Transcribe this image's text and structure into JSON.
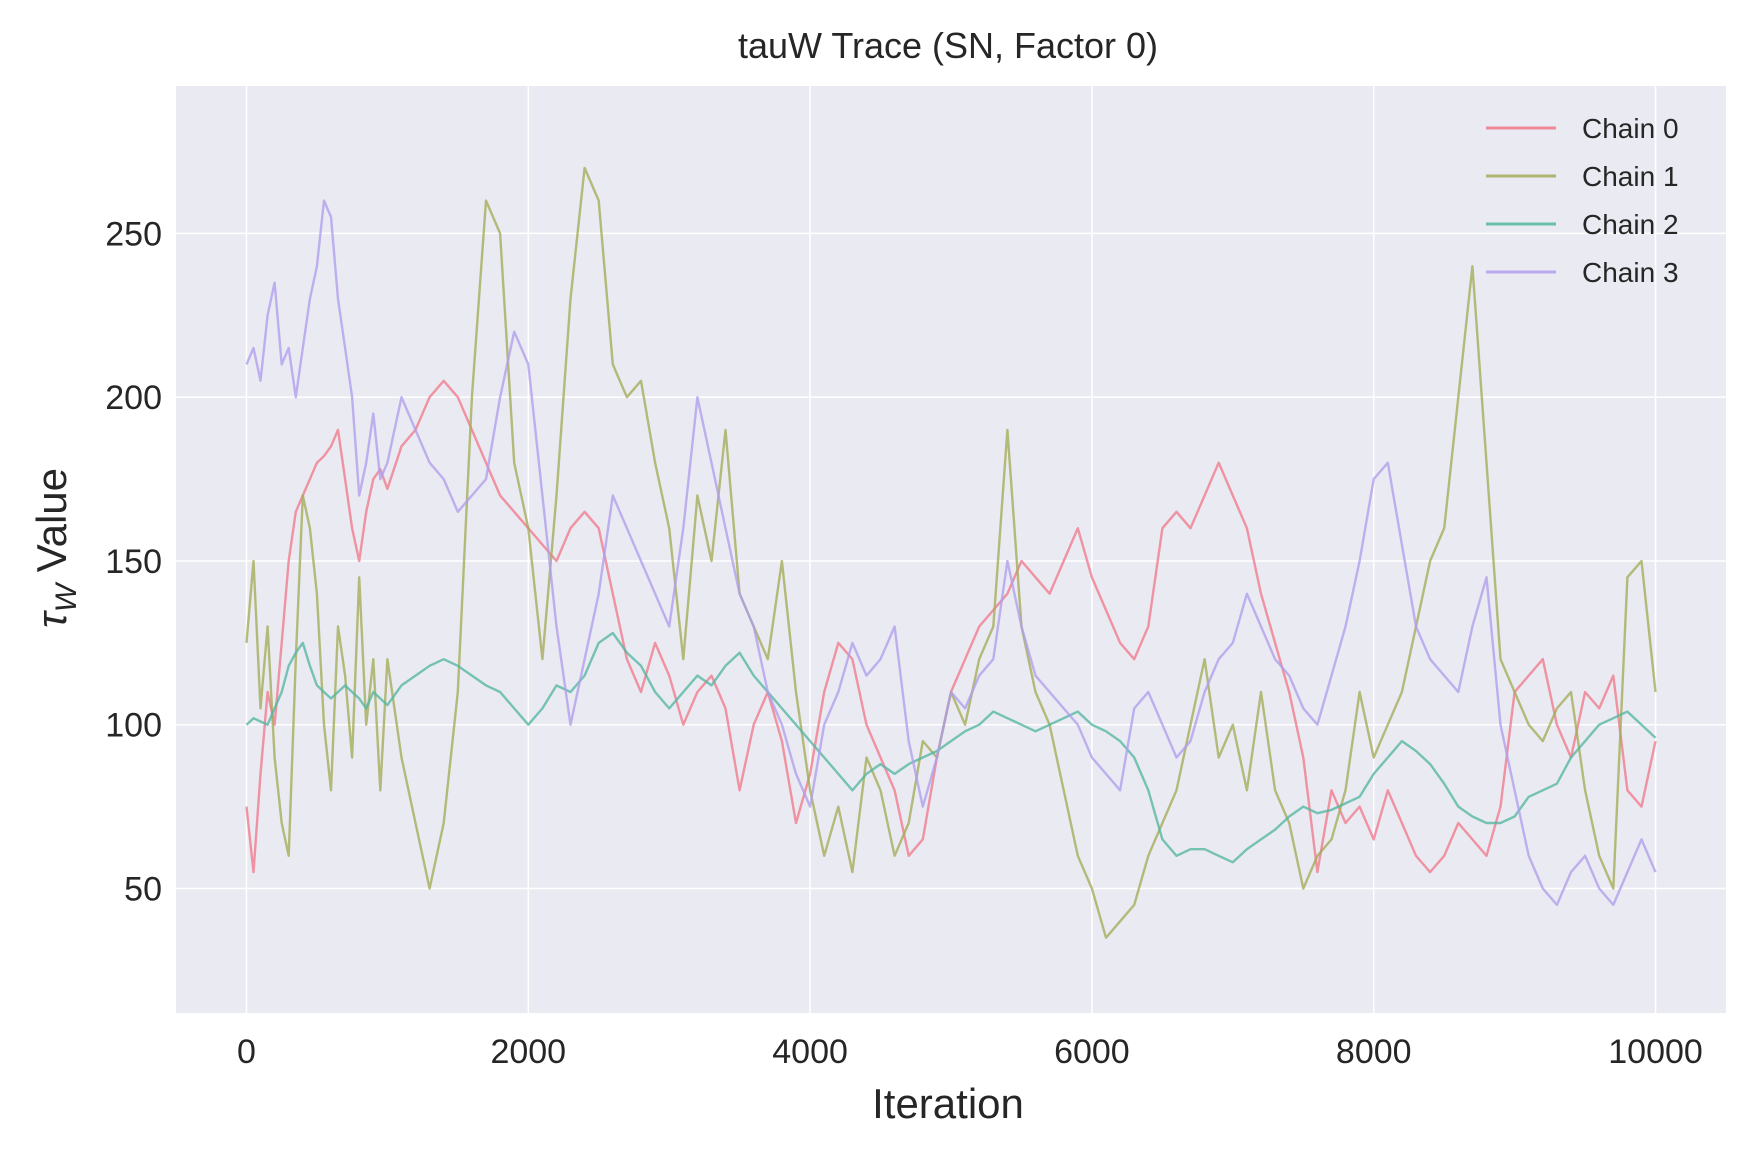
{
  "chart_data": {
    "type": "line",
    "title": "tauW Trace (SN, Factor 0)",
    "xlabel": "Iteration",
    "ylabel_symbol": "τ",
    "ylabel_sub": "W",
    "ylabel_rest": " Value",
    "xlim": [
      -500,
      10500
    ],
    "ylim": [
      12,
      295
    ],
    "xticks": [
      0,
      2000,
      4000,
      6000,
      8000,
      10000
    ],
    "xtick_labels": [
      "0",
      "2000",
      "4000",
      "6000",
      "8000",
      "10000"
    ],
    "yticks": [
      50,
      100,
      150,
      200,
      250
    ],
    "ytick_labels": [
      "50",
      "100",
      "150",
      "200",
      "250"
    ],
    "grid": true,
    "legend_position": "top-right",
    "background": "#eaeaf2",
    "grid_color": "#ffffff",
    "series": [
      {
        "name": "Chain 0",
        "color": "#f0788a",
        "x": [
          0,
          50,
          100,
          150,
          200,
          250,
          300,
          350,
          400,
          450,
          500,
          550,
          600,
          650,
          700,
          750,
          800,
          850,
          900,
          950,
          1000,
          1100,
          1200,
          1300,
          1400,
          1500,
          1600,
          1700,
          1800,
          1900,
          2000,
          2100,
          2200,
          2300,
          2400,
          2500,
          2600,
          2700,
          2800,
          2900,
          3000,
          3100,
          3200,
          3300,
          3400,
          3500,
          3600,
          3700,
          3800,
          3900,
          4000,
          4100,
          4200,
          4300,
          4400,
          4500,
          4600,
          4700,
          4800,
          4900,
          5000,
          5100,
          5200,
          5300,
          5400,
          5500,
          5600,
          5700,
          5800,
          5900,
          6000,
          6100,
          6200,
          6300,
          6400,
          6500,
          6600,
          6700,
          6800,
          6900,
          7000,
          7100,
          7200,
          7300,
          7400,
          7500,
          7600,
          7700,
          7800,
          7900,
          8000,
          8100,
          8200,
          8300,
          8400,
          8500,
          8600,
          8700,
          8800,
          8900,
          9000,
          9100,
          9200,
          9300,
          9400,
          9500,
          9600,
          9700,
          9800,
          9900,
          10000
        ],
        "values": [
          75,
          55,
          85,
          110,
          100,
          125,
          150,
          165,
          170,
          175,
          180,
          182,
          185,
          190,
          175,
          160,
          150,
          165,
          175,
          178,
          172,
          185,
          190,
          200,
          205,
          200,
          190,
          180,
          170,
          165,
          160,
          155,
          150,
          160,
          165,
          160,
          140,
          120,
          110,
          125,
          115,
          100,
          110,
          115,
          105,
          80,
          100,
          110,
          95,
          70,
          85,
          110,
          125,
          120,
          100,
          90,
          80,
          60,
          65,
          90,
          110,
          120,
          130,
          135,
          140,
          150,
          145,
          140,
          150,
          160,
          145,
          135,
          125,
          120,
          130,
          160,
          165,
          160,
          170,
          180,
          170,
          160,
          140,
          125,
          110,
          90,
          55,
          80,
          70,
          75,
          65,
          80,
          70,
          60,
          55,
          60,
          70,
          65,
          60,
          75,
          110,
          115,
          120,
          100,
          90,
          110,
          105,
          115,
          80,
          75,
          95
        ]
      },
      {
        "name": "Chain 1",
        "color": "#a3ac57",
        "x": [
          0,
          50,
          100,
          150,
          200,
          250,
          300,
          350,
          400,
          450,
          500,
          550,
          600,
          650,
          700,
          750,
          800,
          850,
          900,
          950,
          1000,
          1100,
          1200,
          1300,
          1400,
          1500,
          1600,
          1700,
          1800,
          1900,
          2000,
          2100,
          2200,
          2300,
          2400,
          2500,
          2600,
          2700,
          2800,
          2900,
          3000,
          3100,
          3200,
          3300,
          3400,
          3500,
          3600,
          3700,
          3800,
          3900,
          4000,
          4100,
          4200,
          4300,
          4400,
          4500,
          4600,
          4700,
          4800,
          4900,
          5000,
          5100,
          5200,
          5300,
          5400,
          5500,
          5600,
          5700,
          5800,
          5900,
          6000,
          6100,
          6200,
          6300,
          6400,
          6500,
          6600,
          6700,
          6800,
          6900,
          7000,
          7100,
          7200,
          7300,
          7400,
          7500,
          7600,
          7700,
          7800,
          7900,
          8000,
          8100,
          8200,
          8300,
          8400,
          8500,
          8600,
          8700,
          8800,
          8900,
          9000,
          9100,
          9200,
          9300,
          9400,
          9500,
          9600,
          9700,
          9800,
          9900,
          10000
        ],
        "values": [
          125,
          150,
          105,
          130,
          90,
          70,
          60,
          120,
          170,
          160,
          140,
          100,
          80,
          130,
          115,
          90,
          145,
          100,
          120,
          80,
          120,
          90,
          70,
          50,
          70,
          110,
          200,
          260,
          250,
          180,
          160,
          120,
          170,
          230,
          270,
          260,
          210,
          200,
          205,
          180,
          160,
          120,
          170,
          150,
          190,
          140,
          130,
          120,
          150,
          110,
          80,
          60,
          75,
          55,
          90,
          80,
          60,
          70,
          95,
          90,
          110,
          100,
          120,
          130,
          190,
          130,
          110,
          100,
          80,
          60,
          50,
          35,
          40,
          45,
          60,
          70,
          80,
          100,
          120,
          90,
          100,
          80,
          110,
          80,
          70,
          50,
          60,
          65,
          80,
          110,
          90,
          100,
          110,
          130,
          150,
          160,
          200,
          240,
          180,
          120,
          110,
          100,
          95,
          105,
          110,
          80,
          60,
          50,
          145,
          150,
          110
        ]
      },
      {
        "name": "Chain 2",
        "color": "#53b6a2",
        "x": [
          0,
          50,
          100,
          150,
          200,
          250,
          300,
          350,
          400,
          450,
          500,
          550,
          600,
          650,
          700,
          750,
          800,
          850,
          900,
          950,
          1000,
          1100,
          1200,
          1300,
          1400,
          1500,
          1600,
          1700,
          1800,
          1900,
          2000,
          2100,
          2200,
          2300,
          2400,
          2500,
          2600,
          2700,
          2800,
          2900,
          3000,
          3100,
          3200,
          3300,
          3400,
          3500,
          3600,
          3700,
          3800,
          3900,
          4000,
          4100,
          4200,
          4300,
          4400,
          4500,
          4600,
          4700,
          4800,
          4900,
          5000,
          5100,
          5200,
          5300,
          5400,
          5500,
          5600,
          5700,
          5800,
          5900,
          6000,
          6100,
          6200,
          6300,
          6400,
          6500,
          6600,
          6700,
          6800,
          6900,
          7000,
          7100,
          7200,
          7300,
          7400,
          7500,
          7600,
          7700,
          7800,
          7900,
          8000,
          8100,
          8200,
          8300,
          8400,
          8500,
          8600,
          8700,
          8800,
          8900,
          9000,
          9100,
          9200,
          9300,
          9400,
          9500,
          9600,
          9700,
          9800,
          9900,
          10000
        ],
        "values": [
          100,
          102,
          101,
          100,
          105,
          110,
          118,
          122,
          125,
          118,
          112,
          110,
          108,
          110,
          112,
          110,
          108,
          105,
          110,
          108,
          106,
          112,
          115,
          118,
          120,
          118,
          115,
          112,
          110,
          105,
          100,
          105,
          112,
          110,
          115,
          125,
          128,
          122,
          118,
          110,
          105,
          110,
          115,
          112,
          118,
          122,
          115,
          110,
          105,
          100,
          95,
          90,
          85,
          80,
          85,
          88,
          85,
          88,
          90,
          92,
          95,
          98,
          100,
          104,
          102,
          100,
          98,
          100,
          102,
          104,
          100,
          98,
          95,
          90,
          80,
          65,
          60,
          62,
          62,
          60,
          58,
          62,
          65,
          68,
          72,
          75,
          73,
          74,
          76,
          78,
          85,
          90,
          95,
          92,
          88,
          82,
          75,
          72,
          70,
          70,
          72,
          78,
          80,
          82,
          90,
          95,
          100,
          102,
          104,
          100,
          96
        ]
      },
      {
        "name": "Chain 3",
        "color": "#b09ded",
        "x": [
          0,
          50,
          100,
          150,
          200,
          250,
          300,
          350,
          400,
          450,
          500,
          550,
          600,
          650,
          700,
          750,
          800,
          850,
          900,
          950,
          1000,
          1100,
          1200,
          1300,
          1400,
          1500,
          1600,
          1700,
          1800,
          1900,
          2000,
          2100,
          2200,
          2300,
          2400,
          2500,
          2600,
          2700,
          2800,
          2900,
          3000,
          3100,
          3200,
          3300,
          3400,
          3500,
          3600,
          3700,
          3800,
          3900,
          4000,
          4100,
          4200,
          4300,
          4400,
          4500,
          4600,
          4700,
          4800,
          4900,
          5000,
          5100,
          5200,
          5300,
          5400,
          5500,
          5600,
          5700,
          5800,
          5900,
          6000,
          6100,
          6200,
          6300,
          6400,
          6500,
          6600,
          6700,
          6800,
          6900,
          7000,
          7100,
          7200,
          7300,
          7400,
          7500,
          7600,
          7700,
          7800,
          7900,
          8000,
          8100,
          8200,
          8300,
          8400,
          8500,
          8600,
          8700,
          8800,
          8900,
          9000,
          9100,
          9200,
          9300,
          9400,
          9500,
          9600,
          9700,
          9800,
          9900,
          10000
        ],
        "values": [
          210,
          215,
          205,
          225,
          235,
          210,
          215,
          200,
          215,
          230,
          240,
          260,
          255,
          230,
          215,
          200,
          170,
          180,
          195,
          175,
          180,
          200,
          190,
          180,
          175,
          165,
          170,
          175,
          200,
          220,
          210,
          170,
          130,
          100,
          120,
          140,
          170,
          160,
          150,
          140,
          130,
          160,
          200,
          180,
          160,
          140,
          130,
          110,
          100,
          85,
          75,
          100,
          110,
          125,
          115,
          120,
          130,
          95,
          75,
          90,
          110,
          105,
          115,
          120,
          150,
          130,
          115,
          110,
          105,
          100,
          90,
          85,
          80,
          105,
          110,
          100,
          90,
          95,
          110,
          120,
          125,
          140,
          130,
          120,
          115,
          105,
          100,
          115,
          130,
          150,
          175,
          180,
          155,
          130,
          120,
          115,
          110,
          130,
          145,
          100,
          80,
          60,
          50,
          45,
          55,
          60,
          50,
          45,
          55,
          65,
          55
        ]
      }
    ]
  }
}
